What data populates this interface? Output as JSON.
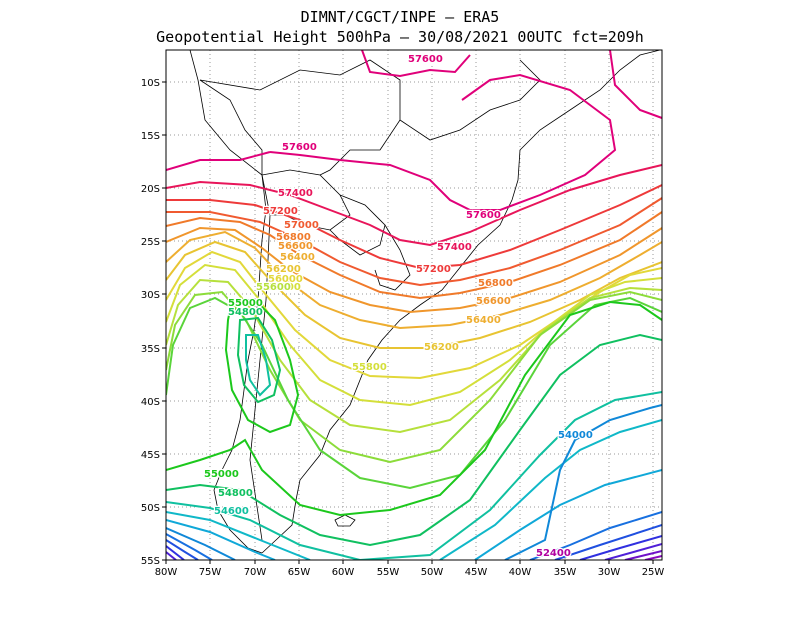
{
  "title_line1": "DIMNT/CGCT/INPE  –  ERA5",
  "title_line2": "Geopotential Height 500hPa –   30/08/2021 00UTC fct=209h",
  "lat_ticks": [
    "10S",
    "15S",
    "20S",
    "25S",
    "30S",
    "35S",
    "40S",
    "45S",
    "50S",
    "55S"
  ],
  "lon_ticks": [
    "80W",
    "75W",
    "70W",
    "65W",
    "60W",
    "55W",
    "50W",
    "45W",
    "40W",
    "35W",
    "30W",
    "25W"
  ],
  "contour_colors": {
    "57600": "#e0007a",
    "57400": "#e8155a",
    "57200": "#ee3a3a",
    "57000": "#f05a30",
    "56800": "#f07a2a",
    "56600": "#f0962c",
    "56400": "#eeae30",
    "56200": "#e8c432",
    "56000": "#e2d83a",
    "55800": "#d4df3a",
    "55600": "#b6e03c",
    "55400": "#8cdc3a",
    "55200": "#5ad43a",
    "55000": "#1cc81c",
    "54800": "#10c060",
    "54600": "#10c0a0",
    "54400": "#10b8c8",
    "54200": "#10a8d8",
    "54000": "#1088d8",
    "53800": "#1870e0",
    "53600": "#2050e0",
    "53400": "#3030e0",
    "53200": "#5020d8",
    "53000": "#7010c8",
    "52800": "#8a08c0",
    "52600": "#a000b0",
    "52400": "#b000a0"
  },
  "contour_labels": [
    {
      "text": "57600",
      "color": "#e0007a"
    },
    {
      "text": "57600",
      "color": "#e0007a"
    },
    {
      "text": "57600",
      "color": "#e0007a"
    },
    {
      "text": "57400",
      "color": "#e8155a"
    },
    {
      "text": "57400",
      "color": "#e8155a"
    },
    {
      "text": "57200",
      "color": "#ee3a3a"
    },
    {
      "text": "57200",
      "color": "#ee3a3a"
    },
    {
      "text": "57000",
      "color": "#f05a30"
    },
    {
      "text": "56800",
      "color": "#f07a2a"
    },
    {
      "text": "56800",
      "color": "#f07a2a"
    },
    {
      "text": "56600",
      "color": "#f0962c"
    },
    {
      "text": "56600",
      "color": "#f0962c"
    },
    {
      "text": "56400",
      "color": "#eeae30"
    },
    {
      "text": "56400",
      "color": "#eeae30"
    },
    {
      "text": "56200",
      "color": "#e8c432"
    },
    {
      "text": "56200",
      "color": "#e8c432"
    },
    {
      "text": "56000",
      "color": "#e2d83a"
    },
    {
      "text": "55800",
      "color": "#d4df3a"
    },
    {
      "text": "55800",
      "color": "#d4df3a"
    },
    {
      "text": "55600",
      "color": "#b6e03c"
    },
    {
      "text": "55000",
      "color": "#1cc81c"
    },
    {
      "text": "54800",
      "color": "#10c060"
    },
    {
      "text": "55000",
      "color": "#1cc81c"
    },
    {
      "text": "54800",
      "color": "#10c060"
    },
    {
      "text": "54600",
      "color": "#10c0a0"
    },
    {
      "text": "54000",
      "color": "#1088d8"
    },
    {
      "text": "52400",
      "color": "#b000a0"
    }
  ]
}
